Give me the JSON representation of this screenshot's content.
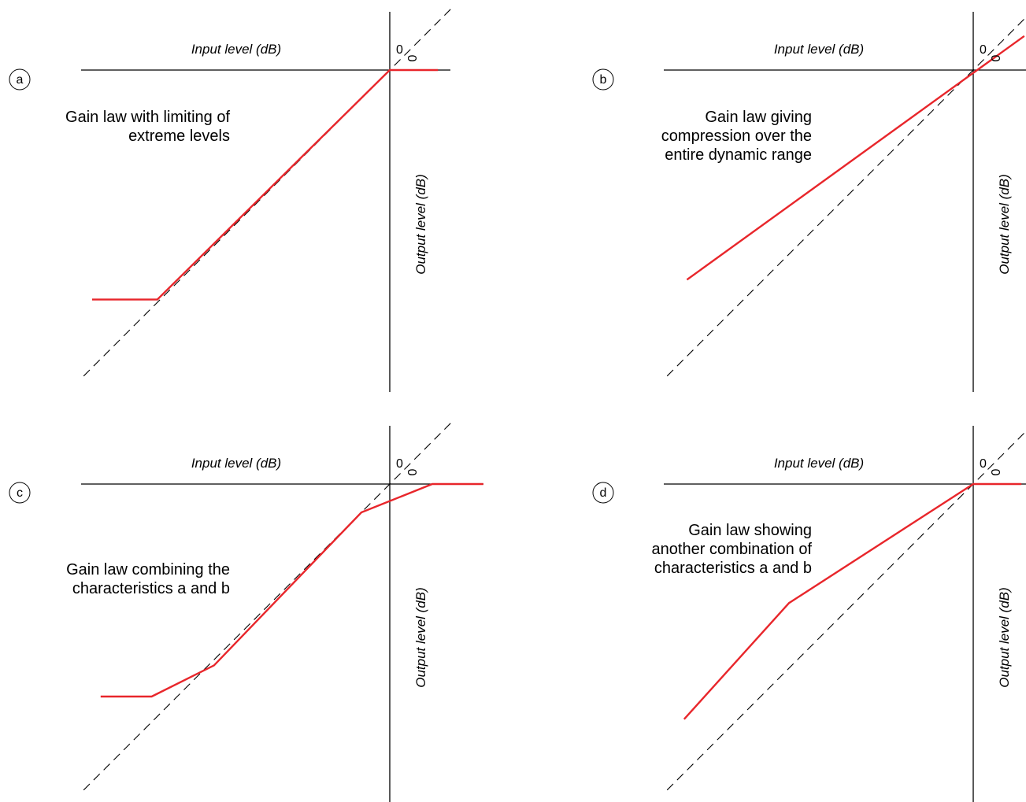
{
  "colors": {
    "curve": "#e8262b",
    "axis": "#000000",
    "background": "#ffffff"
  },
  "panels": [
    {
      "id": "a",
      "badge": "a",
      "input_label": "Input level (dB)",
      "output_label": "Output level (dB)",
      "zero_x": "0",
      "zero_y": "0",
      "caption": [
        "Gain law with limiting of",
        "extreme levels"
      ],
      "gain_curve": [
        [
          -105,
          -81
        ],
        [
          -82,
          -81
        ],
        [
          0,
          0
        ],
        [
          17,
          0
        ]
      ],
      "reference_line": [
        [
          -108,
          -108
        ],
        [
          22,
          22
        ]
      ]
    },
    {
      "id": "b",
      "badge": "b",
      "input_label": "Input level (dB)",
      "output_label": "Output level (dB)",
      "zero_x": "0",
      "zero_y": "0",
      "caption": [
        "Gain law giving",
        "compression over the",
        "entire dynamic range"
      ],
      "gain_curve": [
        [
          -101,
          -74
        ],
        [
          18,
          12
        ]
      ],
      "reference_line": [
        [
          -108,
          -108
        ],
        [
          22,
          22
        ]
      ]
    },
    {
      "id": "c",
      "badge": "c",
      "input_label": "Input level (dB)",
      "output_label": "Output level (dB)",
      "zero_x": "0",
      "zero_y": "0",
      "caption": [
        "Gain law combining the",
        "characteristics a and b"
      ],
      "gain_curve": [
        [
          -102,
          -75
        ],
        [
          -84,
          -75
        ],
        [
          -62,
          -64
        ],
        [
          -10,
          -10
        ],
        [
          15,
          0
        ],
        [
          33,
          0
        ]
      ],
      "reference_line": [
        [
          -108,
          -108
        ],
        [
          22,
          22
        ]
      ]
    },
    {
      "id": "d",
      "badge": "d",
      "input_label": "Input level (dB)",
      "output_label": "Output level (dB)",
      "zero_x": "0",
      "zero_y": "0",
      "caption": [
        "Gain law showing",
        "another combination of",
        "characteristics a and b"
      ],
      "gain_curve": [
        [
          -102,
          -83
        ],
        [
          -65,
          -42
        ],
        [
          0,
          0
        ],
        [
          17,
          0
        ]
      ],
      "reference_line": [
        [
          -108,
          -108
        ],
        [
          22,
          22
        ]
      ]
    }
  ]
}
